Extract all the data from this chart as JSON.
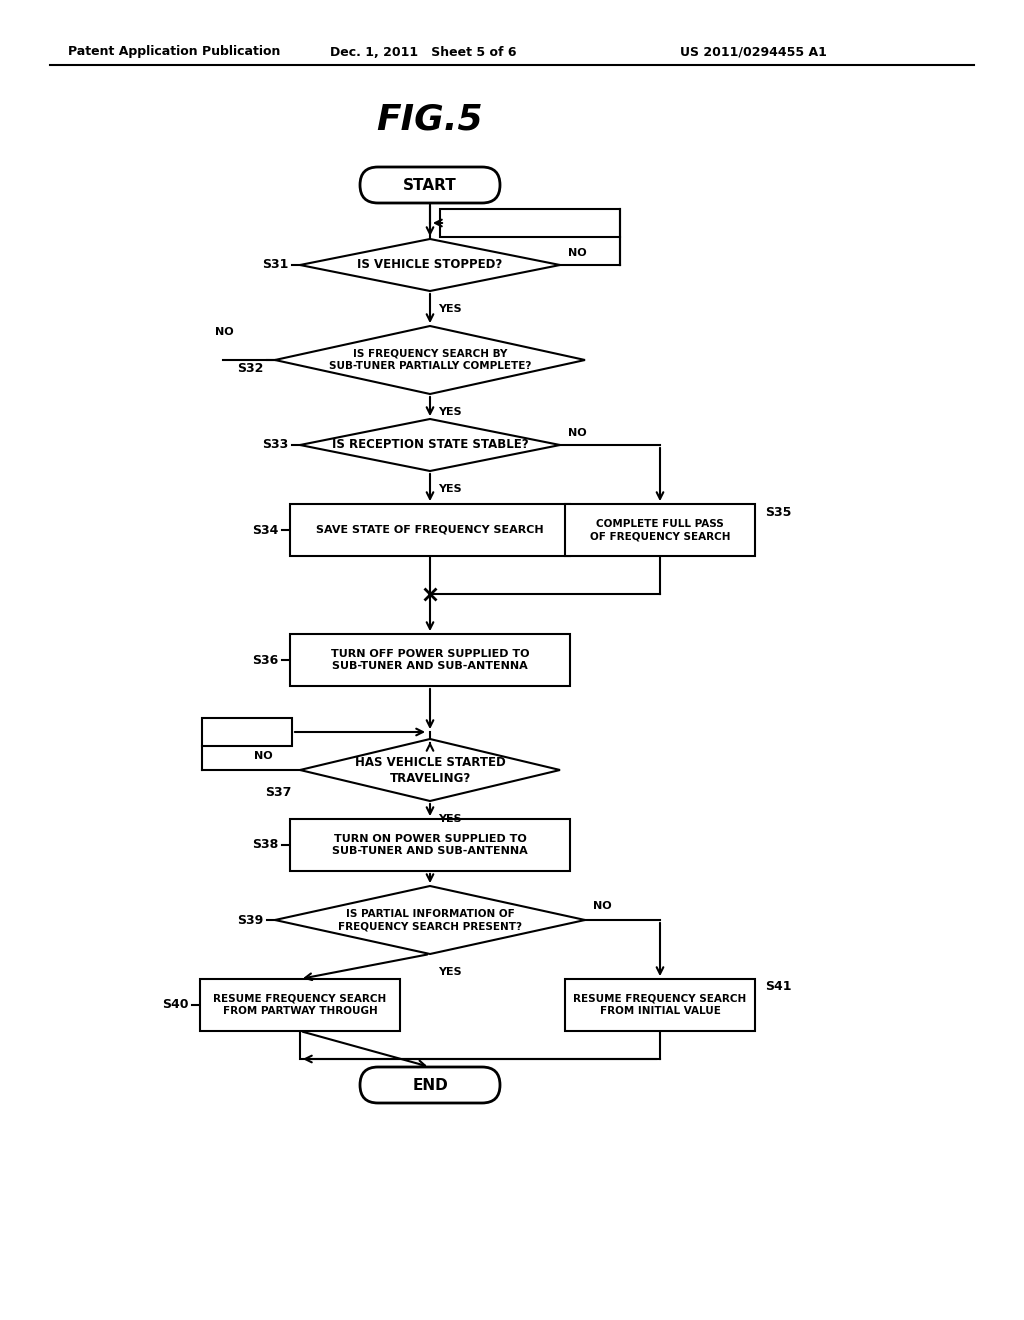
{
  "title": "FIG.5",
  "header_left": "Patent Application Publication",
  "header_mid": "Dec. 1, 2011   Sheet 5 of 6",
  "header_right": "US 2011/0294455 A1",
  "background": "#ffffff",
  "fig_width": 10.24,
  "fig_height": 13.2,
  "dpi": 100,
  "nodes": {
    "start": {
      "label": "START",
      "type": "terminal"
    },
    "s31": {
      "label": "IS VEHICLE STOPPED?",
      "type": "diamond",
      "step": "S31"
    },
    "s32": {
      "label": "IS FREQUENCY SEARCH BY\nSUB-TUNER PARTIALLY COMPLETE?",
      "type": "diamond",
      "step": "S32"
    },
    "s33": {
      "label": "IS RECEPTION STATE STABLE?",
      "type": "diamond",
      "step": "S33"
    },
    "s34": {
      "label": "SAVE STATE OF FREQUENCY SEARCH",
      "type": "rect",
      "step": "S34"
    },
    "s35": {
      "label": "COMPLETE FULL PASS\nOF FREQUENCY SEARCH",
      "type": "rect",
      "step": "S35"
    },
    "s36": {
      "label": "TURN OFF POWER SUPPLIED TO\nSUB-TUNER AND SUB-ANTENNA",
      "type": "rect",
      "step": "S36"
    },
    "s37": {
      "label": "HAS VEHICLE STARTED\nTRAVELING?",
      "type": "diamond",
      "step": "S37"
    },
    "s38": {
      "label": "TURN ON POWER SUPPLIED TO\nSUB-TUNER AND SUB-ANTENNA",
      "type": "rect",
      "step": "S38"
    },
    "s39": {
      "label": "IS PARTIAL INFORMATION OF\nFREQUENCY SEARCH PRESENT?",
      "type": "diamond",
      "step": "S39"
    },
    "s40": {
      "label": "RESUME FREQUENCY SEARCH\nFROM PARTWAY THROUGH",
      "type": "rect",
      "step": "S40"
    },
    "s41": {
      "label": "RESUME FREQUENCY SEARCH\nFROM INITIAL VALUE",
      "type": "rect",
      "step": "S41"
    },
    "end": {
      "label": "END",
      "type": "terminal"
    }
  }
}
